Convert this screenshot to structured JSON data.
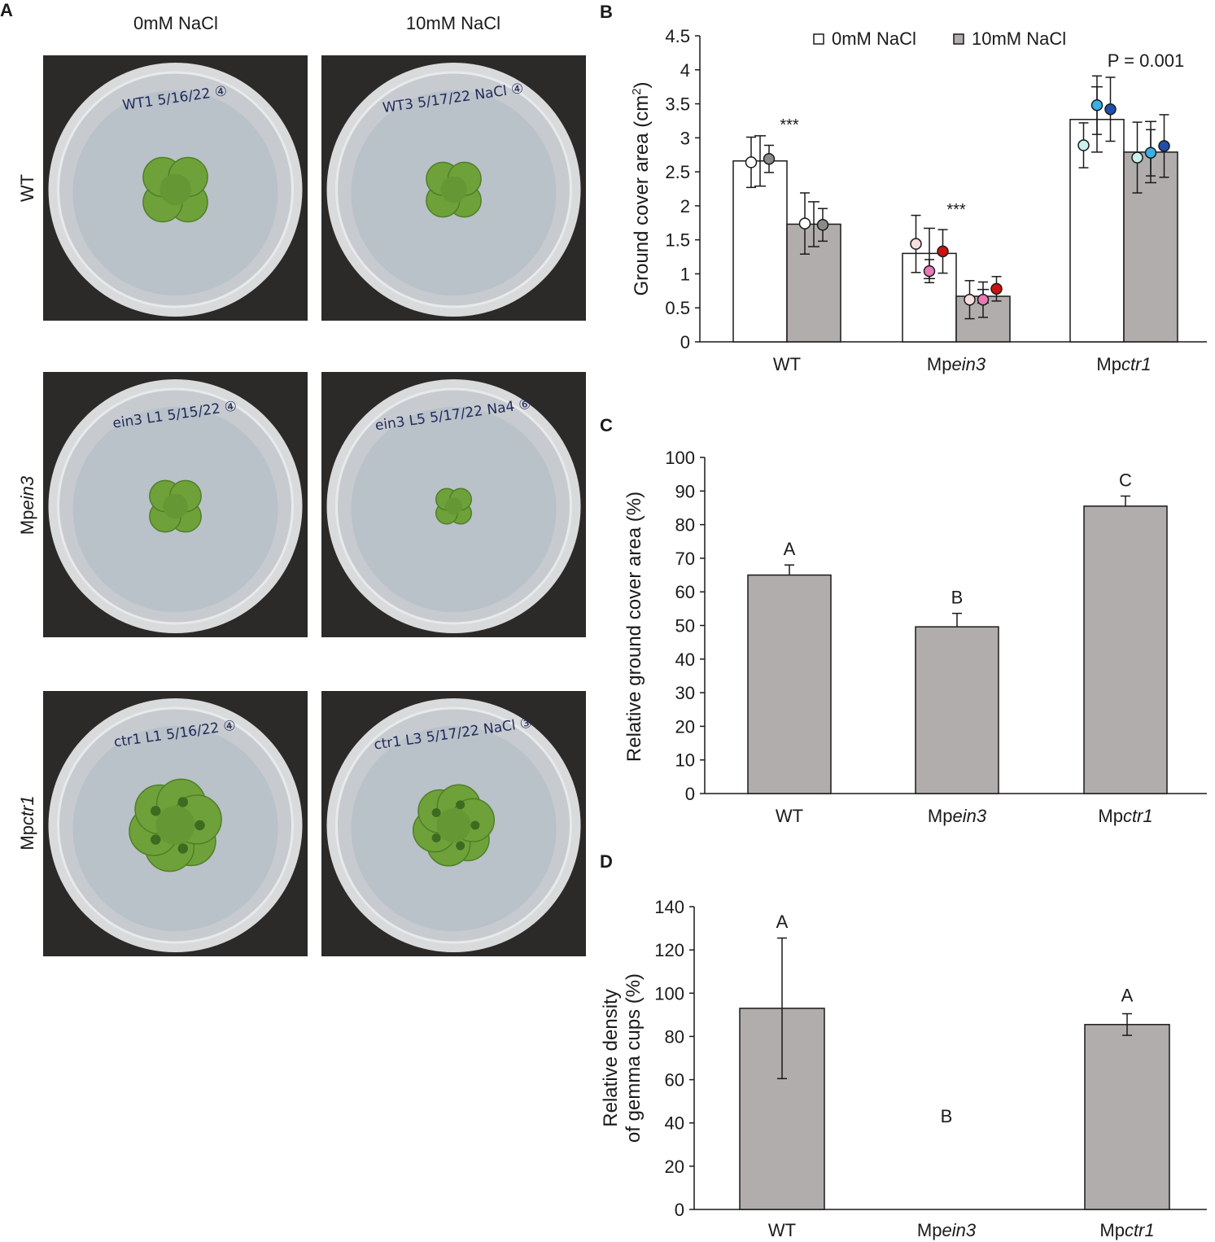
{
  "panel_a": {
    "letter": "A",
    "columns": [
      "0mM NaCl",
      "10mM NaCl"
    ],
    "rows": [
      {
        "label_prefix": "WT",
        "label_italic": "",
        "plates": [
          "WT1 5/16/22 ④",
          "WT3 5/17/22 NaCl ④"
        ],
        "thallus": "wt"
      },
      {
        "label_prefix": "Mp",
        "label_italic": "ein3",
        "plates": [
          "ein3 L1 5/15/22 ④",
          "ein3 L5 5/17/22 Na4 ⑥"
        ],
        "thallus": "ein3"
      },
      {
        "label_prefix": "Mp",
        "label_italic": "ctr1",
        "plates": [
          "ctr1 L1 5/16/22 ④",
          "ctr1 L3 5/17/22 NaCl ③"
        ],
        "thallus": "ctr1"
      }
    ]
  },
  "chart_data": [
    {
      "panel": "B",
      "type": "bar",
      "categories": [
        {
          "prefix": "",
          "italic": "",
          "plain": "WT"
        },
        {
          "prefix": "Mp",
          "italic": "ein3",
          "plain": ""
        },
        {
          "prefix": "Mp",
          "italic": "ctr1",
          "plain": ""
        }
      ],
      "ylabel": "Ground cover area (cm²)",
      "ylabel_main": "Ground cover area (cm",
      "ylabel_sup": "2",
      "ylabel_end": ")",
      "ylim": [
        0,
        4.5
      ],
      "yticks": [
        "0",
        "0.5",
        "1",
        "1.5",
        "2",
        "2.5",
        "3",
        "3.5",
        "4",
        "4.5"
      ],
      "legend_position": "top",
      "series": [
        {
          "name": "0mM NaCl",
          "color": "#ffffff",
          "values": [
            2.66,
            1.3,
            3.27
          ],
          "errors": [
            0.37,
            0.37,
            0.48
          ],
          "points": [
            [
              2.64,
              0.37,
              "#ffffff"
            ],
            [
              2.69,
              0.2,
              "#8a8a8a"
            ],
            [
              1.44,
              0.42,
              "#f9dede"
            ],
            [
              1.04,
              0.17,
              "#e879b6"
            ],
            [
              1.33,
              0.32,
              "#cc1111"
            ],
            [
              2.89,
              0.33,
              "#c8f2f0"
            ],
            [
              3.48,
              0.43,
              "#3ab0e6"
            ],
            [
              3.42,
              0.47,
              "#1f4fa8"
            ]
          ]
        },
        {
          "name": "10mM NaCl",
          "color": "#b0adac",
          "values": [
            1.73,
            0.67,
            2.79
          ],
          "errors": [
            0.33,
            0.1,
            0.45
          ],
          "points": [
            [
              1.74,
              0.45,
              "#ffffff"
            ],
            [
              1.72,
              0.24,
              "#8a8a8a"
            ],
            [
              0.62,
              0.28,
              "#f9dede"
            ],
            [
              0.62,
              0.26,
              "#e879b6"
            ],
            [
              0.78,
              0.18,
              "#cc1111"
            ],
            [
              2.71,
              0.52,
              "#c8f2f0"
            ],
            [
              2.78,
              0.34,
              "#3ab0e6"
            ],
            [
              2.88,
              0.46,
              "#1f4fa8"
            ]
          ]
        }
      ],
      "annotations": [
        "***",
        "***",
        "P = 0.001"
      ]
    },
    {
      "panel": "C",
      "type": "bar",
      "categories": [
        {
          "prefix": "",
          "italic": "",
          "plain": "WT"
        },
        {
          "prefix": "Mp",
          "italic": "ein3",
          "plain": ""
        },
        {
          "prefix": "Mp",
          "italic": "ctr1",
          "plain": ""
        }
      ],
      "ylabel": "Relative ground cover area (%)",
      "ylim": [
        0,
        100
      ],
      "yticks": [
        "0",
        "10",
        "20",
        "30",
        "40",
        "50",
        "60",
        "70",
        "80",
        "90",
        "100"
      ],
      "values": [
        65,
        49.6,
        85.5
      ],
      "errors": [
        3,
        4,
        3
      ],
      "letters": [
        "A",
        "B",
        "C"
      ],
      "color": "#b0adac"
    },
    {
      "panel": "D",
      "type": "bar",
      "categories": [
        {
          "prefix": "",
          "italic": "",
          "plain": "WT"
        },
        {
          "prefix": "Mp",
          "italic": "ein3",
          "plain": ""
        },
        {
          "prefix": "Mp",
          "italic": "ctr1",
          "plain": ""
        }
      ],
      "ylabel": "Relative density of gemma cups (%)",
      "ylabel_lines": [
        "Relative density",
        "of gemma cups (%)"
      ],
      "ylim": [
        0,
        140
      ],
      "yticks": [
        "0",
        "20",
        "40",
        "60",
        "80",
        "100",
        "120",
        "140"
      ],
      "values": [
        93,
        0,
        85.5
      ],
      "errors": [
        32.5,
        0,
        5
      ],
      "letters": [
        "A",
        "B",
        "A"
      ],
      "color": "#b0adac"
    }
  ]
}
